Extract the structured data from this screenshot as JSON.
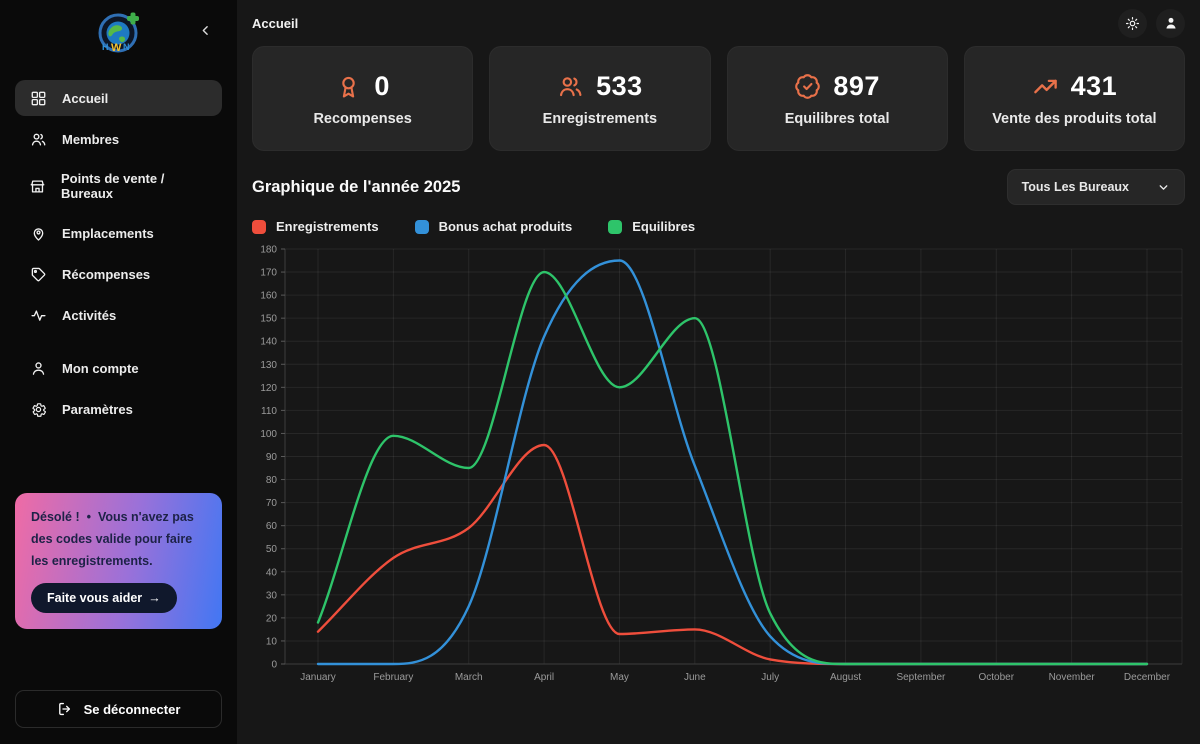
{
  "accent": "#e8714a",
  "sidebar": {
    "items": [
      {
        "label": "Accueil",
        "icon": "grid",
        "active": true
      },
      {
        "label": "Membres",
        "icon": "users",
        "active": false
      },
      {
        "label": "Points de vente / Bureaux",
        "icon": "store",
        "active": false
      },
      {
        "label": "Emplacements",
        "icon": "map-pin-user",
        "active": false
      },
      {
        "label": "Récompenses",
        "icon": "tag",
        "active": false
      },
      {
        "label": "Activités",
        "icon": "activity",
        "active": false
      }
    ],
    "items_secondary": [
      {
        "label": "Mon compte",
        "icon": "user",
        "active": false
      },
      {
        "label": "Paramètres",
        "icon": "gear",
        "active": false
      }
    ],
    "notice": {
      "title": "Désolé !",
      "separator": "•",
      "message": "Vous n'avez pas des codes valide pour faire les enregistrements.",
      "cta_label": "Faite vous aider",
      "cta_arrow": "→",
      "gradient_from": "#ef6ba5",
      "gradient_to": "#4277f3"
    },
    "logout_label": "Se déconnecter"
  },
  "topbar": {
    "breadcrumb": "Accueil"
  },
  "stats": [
    {
      "value": "0",
      "label": "Recompenses",
      "icon": "award"
    },
    {
      "value": "533",
      "label": "Enregistrements",
      "icon": "users"
    },
    {
      "value": "897",
      "label": "Equilibres total",
      "icon": "badge-check"
    },
    {
      "value": "431",
      "label": "Vente des produits total",
      "icon": "trending-up"
    }
  ],
  "chart_section": {
    "title": "Graphique de l'année 2025",
    "filter_selected": "Tous Les Bureaux"
  },
  "chart_data": {
    "type": "line",
    "x": [
      "January",
      "February",
      "March",
      "April",
      "May",
      "June",
      "July",
      "August",
      "September",
      "October",
      "November",
      "December"
    ],
    "series": [
      {
        "name": "Enregistrements",
        "color": "#ef4e3c",
        "values": [
          14,
          46,
          59,
          95,
          13,
          15,
          2,
          0,
          0,
          0,
          0,
          0
        ]
      },
      {
        "name": "Bonus achat produits",
        "color": "#3391d9",
        "values": [
          0,
          0,
          25,
          142,
          175,
          86,
          12,
          0,
          0,
          0,
          0,
          0
        ]
      },
      {
        "name": "Equilibres",
        "color": "#2ec46a",
        "values": [
          18,
          99,
          85,
          170,
          120,
          150,
          22,
          0,
          0,
          0,
          0,
          0
        ]
      }
    ],
    "ylim": [
      0,
      180
    ],
    "ytick_step": 10,
    "grid": true,
    "legend_position": "top"
  }
}
